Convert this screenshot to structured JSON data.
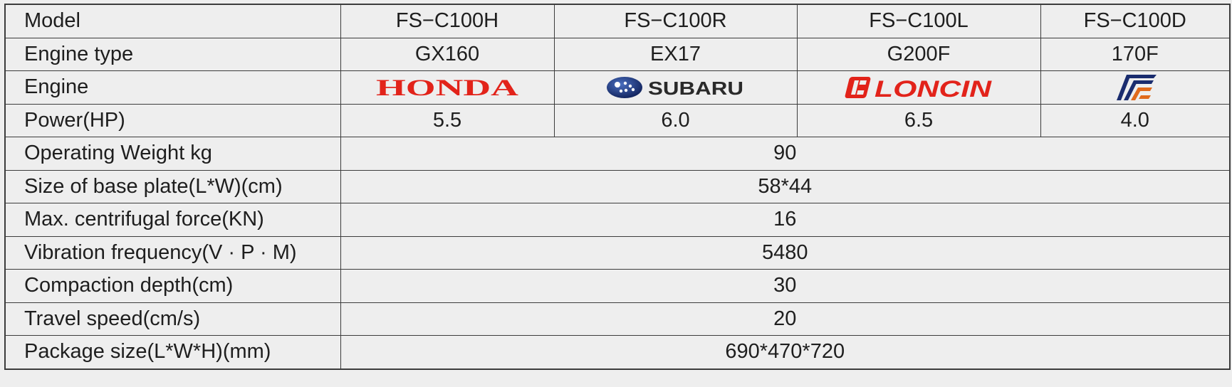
{
  "table": {
    "model": {
      "label": "Model",
      "values": [
        "FS−C100H",
        "FS−C100R",
        "FS−C100L",
        "FS−C100D"
      ]
    },
    "engine_type": {
      "label": "Engine type",
      "values": [
        "GX160",
        "EX17",
        "G200F",
        "170F"
      ]
    },
    "engine": {
      "label": "Engine",
      "logos": [
        {
          "text": "HONDA",
          "icon": "honda-logo",
          "color": "#e2231a"
        },
        {
          "text": "SUBARU",
          "icon": "subaru-logo",
          "color": "#1a2c6e"
        },
        {
          "text": "LONCIN",
          "icon": "loncin-logo",
          "color": "#e2231a"
        },
        {
          "text": "",
          "icon": "stylized-f-logo",
          "color": "#1a2c6e"
        }
      ]
    },
    "power": {
      "label": "Power(HP)",
      "values": [
        "5.5",
        "6.0",
        "6.5",
        "4.0"
      ]
    },
    "shared_rows": [
      {
        "label": "Operating Weight kg",
        "value": "90"
      },
      {
        "label": "Size of base plate(L*W)(cm)",
        "value": "58*44"
      },
      {
        "label": "Max. centrifugal force(KN)",
        "value": "16"
      },
      {
        "label": "Vibration frequency(V · P · M)",
        "value": "5480"
      },
      {
        "label": "Compaction depth(cm)",
        "value": "30"
      },
      {
        "label": "Travel speed(cm/s)",
        "value": "20"
      },
      {
        "label": "Package size(L*W*H)(mm)",
        "value": "690*470*720"
      }
    ]
  }
}
